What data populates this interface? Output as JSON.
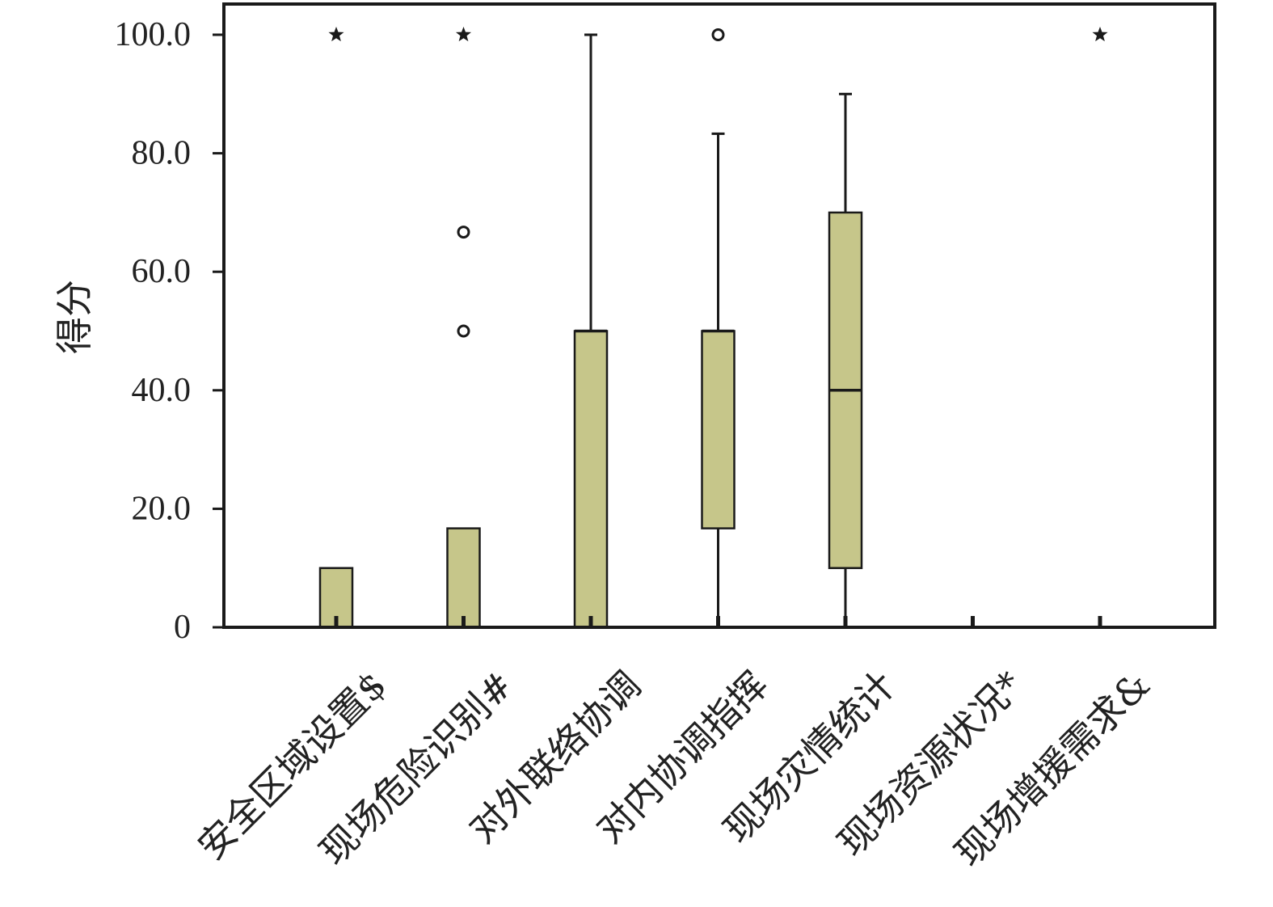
{
  "chart_data": {
    "type": "boxplot",
    "title": "",
    "xlabel": "",
    "ylabel": "得分",
    "ylim": [
      0,
      100
    ],
    "y_ticks": [
      {
        "value": 0,
        "label": "0"
      },
      {
        "value": 20,
        "label": "20.0"
      },
      {
        "value": 40,
        "label": "40.0"
      },
      {
        "value": 60,
        "label": "60.0"
      },
      {
        "value": 80,
        "label": "80.0"
      },
      {
        "value": 100,
        "label": "100.0"
      }
    ],
    "grid": false,
    "legend": "none",
    "colors": {
      "box_fill": "#c6c68a",
      "box_edge": "#1a1a1a",
      "axis": "#1a1a1a",
      "text": "#222222"
    },
    "categories": [
      "安全区域设置$",
      "现场危险识别#",
      "对外联络协调",
      "对内协调指挥",
      "现场灾情统计",
      "现场资源状况*",
      "现场增援需求&"
    ],
    "boxes": [
      {
        "min": 0,
        "q1": 0,
        "median": 0,
        "q3": 10,
        "max": 10,
        "outliers": [],
        "extremes": [
          100
        ]
      },
      {
        "min": 0,
        "q1": 0,
        "median": 0,
        "q3": 16.7,
        "max": 16.7,
        "outliers": [
          50,
          66.7
        ],
        "extremes": [
          100
        ]
      },
      {
        "min": 0,
        "q1": 0,
        "median": 50,
        "q3": 50,
        "max": 100,
        "outliers": [],
        "extremes": []
      },
      {
        "min": 0,
        "q1": 16.7,
        "median": 50,
        "q3": 50,
        "max": 83.3,
        "outliers": [
          100
        ],
        "extremes": []
      },
      {
        "min": 0,
        "q1": 10,
        "median": 40,
        "q3": 70,
        "max": 90,
        "outliers": [],
        "extremes": []
      },
      {
        "min": 0,
        "q1": 0,
        "median": 0,
        "q3": 0,
        "max": 0,
        "outliers": [],
        "extremes": []
      },
      {
        "min": 0,
        "q1": 0,
        "median": 0,
        "q3": 0,
        "max": 0,
        "outliers": [],
        "extremes": [
          100
        ]
      }
    ]
  }
}
